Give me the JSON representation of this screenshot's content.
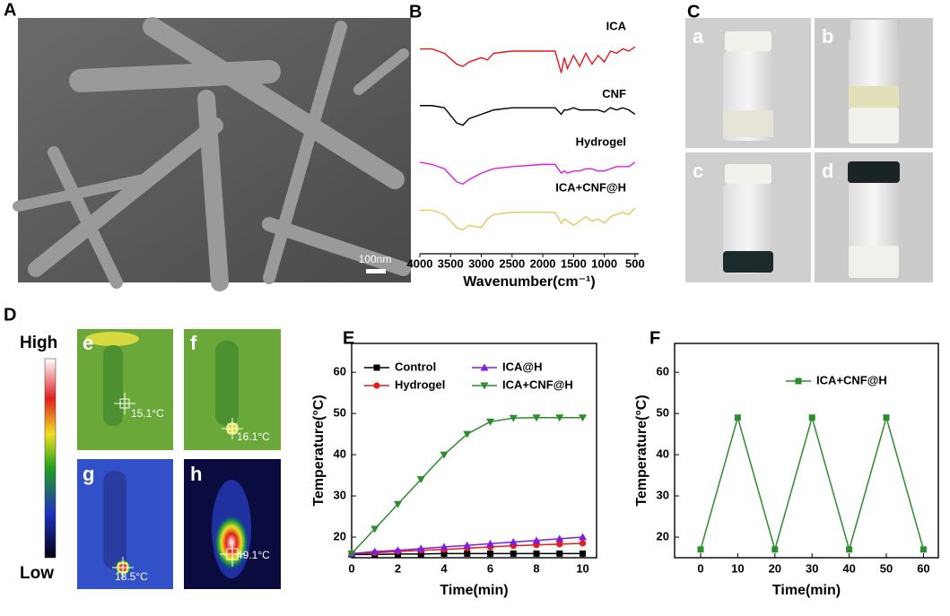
{
  "panel_labels": [
    "A",
    "B",
    "C",
    "D",
    "E",
    "F"
  ],
  "sem": {
    "scale_bar": "100nm"
  },
  "vials": [
    "a",
    "b",
    "c",
    "d"
  ],
  "thermal": {
    "colorbar_high": "High",
    "colorbar_low": "Low",
    "images": [
      {
        "label": "e",
        "temp": "15.1°C"
      },
      {
        "label": "f",
        "temp": "16.1°C"
      },
      {
        "label": "g",
        "temp": "18.5°C"
      },
      {
        "label": "h",
        "temp": "49.1°C"
      }
    ]
  },
  "chart_data": [
    {
      "type": "spectrum",
      "xlabel": "Wavenumber(cm⁻¹)",
      "x": [
        4000,
        3800,
        3600,
        3400,
        3300,
        3200,
        3000,
        2900,
        2800,
        2500,
        2000,
        1800,
        1700,
        1650,
        1600,
        1500,
        1400,
        1300,
        1200,
        1100,
        1000,
        900,
        800,
        700,
        600,
        500
      ],
      "series": [
        {
          "name": "ICA",
          "color": "#e8141e",
          "values": [
            94,
            94,
            92,
            87,
            86,
            88,
            90,
            89,
            92,
            93,
            93,
            93,
            83,
            90,
            85,
            91,
            86,
            92,
            87,
            91,
            88,
            93,
            92,
            94,
            93,
            95
          ]
        },
        {
          "name": "CNF",
          "color": "#000000",
          "values": [
            68,
            68,
            67,
            60,
            59,
            62,
            64,
            65,
            66,
            67,
            67,
            67,
            64,
            66,
            66,
            67,
            66,
            66,
            66,
            66,
            65,
            67,
            66,
            67,
            66,
            64
          ]
        },
        {
          "name": "Hydrogel",
          "color": "#e01ee0",
          "values": [
            42,
            41,
            39,
            33,
            32,
            34,
            37,
            38,
            39,
            40,
            41,
            41,
            37,
            38,
            37,
            38,
            38,
            39,
            39,
            38,
            38,
            39,
            40,
            40,
            40,
            42
          ]
        },
        {
          "name": "ICA+CNF@H",
          "color": "#e2c860",
          "values": [
            20,
            20,
            18,
            12,
            11,
            13,
            12,
            16,
            18,
            19,
            19,
            19,
            14,
            16,
            15,
            13,
            15,
            17,
            15,
            16,
            14,
            17,
            18,
            19,
            18,
            21
          ]
        }
      ],
      "xlim": [
        4000,
        440
      ],
      "ylim": [
        0,
        100
      ],
      "xticks": [
        4000,
        3500,
        3000,
        2500,
        2000,
        1500,
        1000,
        500
      ]
    },
    {
      "type": "line",
      "xlabel": "Time(min)",
      "ylabel": "Temperature(°C)",
      "x": [
        0,
        1,
        2,
        3,
        4,
        5,
        6,
        7,
        8,
        9,
        10
      ],
      "series": [
        {
          "name": "Control",
          "color": "#000000",
          "marker": "square",
          "values": [
            15.8,
            15.8,
            15.9,
            15.9,
            16,
            16,
            16,
            16,
            16,
            16,
            16
          ]
        },
        {
          "name": "Hydrogel",
          "color": "#e81a1a",
          "marker": "circle",
          "values": [
            16,
            16.2,
            16.5,
            16.8,
            17,
            17.3,
            17.6,
            17.9,
            18.1,
            18.3,
            18.5
          ]
        },
        {
          "name": "ICA@H",
          "color": "#7b1fe0",
          "marker": "triangle-up",
          "values": [
            16,
            16.5,
            16.8,
            17.2,
            17.6,
            18,
            18.4,
            18.8,
            19.2,
            19.6,
            20
          ]
        },
        {
          "name": "ICA+CNF@H",
          "color": "#2e8b2e",
          "marker": "triangle-down",
          "values": [
            16,
            22,
            28,
            34,
            40,
            45,
            48,
            48.9,
            49,
            49,
            49
          ]
        }
      ],
      "xlim": [
        0,
        10.6
      ],
      "ylim": [
        15,
        67
      ],
      "xticks": [
        0,
        2,
        4,
        6,
        8,
        10
      ],
      "yticks": [
        20,
        30,
        40,
        50,
        60
      ],
      "legend": "top"
    },
    {
      "type": "line",
      "xlabel": "Time(min)",
      "ylabel": "Temperature(°C)",
      "x": [
        0,
        10,
        20,
        30,
        40,
        50,
        60
      ],
      "series": [
        {
          "name": "ICA+CNF@H",
          "color": "#2e8b2e",
          "marker": "square",
          "values": [
            17,
            49,
            17,
            49,
            17,
            49,
            17
          ]
        }
      ],
      "xlim": [
        -7,
        64
      ],
      "ylim": [
        15,
        67
      ],
      "xticks": [
        0,
        10,
        20,
        30,
        40,
        50,
        60
      ],
      "yticks": [
        20,
        30,
        40,
        50,
        60
      ],
      "legend": "top-right"
    }
  ]
}
